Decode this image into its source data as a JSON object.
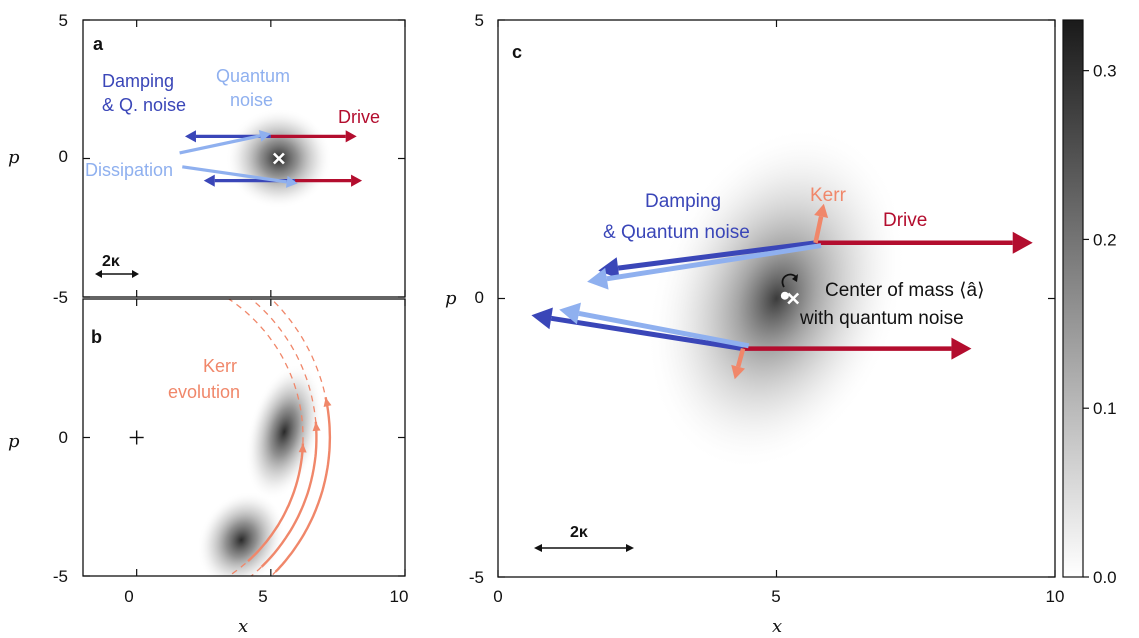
{
  "colors": {
    "blue": "#3a46b8",
    "light_blue": "#8fb0ef",
    "red": "#b30d2e",
    "orange": "#f0876a",
    "dark": "#111111"
  },
  "chart_data": [
    {
      "panel": "a",
      "type": "heatmap",
      "xlabel": "x",
      "ylabel": "p",
      "xlim": [
        -2,
        10
      ],
      "ylim": [
        -5,
        5
      ],
      "xticks": [
        "0",
        "5",
        "10"
      ],
      "yticks": [
        "-5",
        "0",
        "5"
      ],
      "blob": {
        "cx": 5.3,
        "cy": 0.0,
        "sx": 0.9,
        "sy": 0.7
      },
      "marker": {
        "x": 5.3,
        "y": 0.0
      },
      "arrows": [
        {
          "name": "damping-upper",
          "color": "blue",
          "from": [
            5.0,
            0.8
          ],
          "to": [
            1.8,
            0.8
          ]
        },
        {
          "name": "drive-upper",
          "color": "red",
          "from": [
            5.0,
            0.8
          ],
          "to": [
            8.2,
            0.8
          ]
        },
        {
          "name": "quantum-noise-upper",
          "color": "light_blue",
          "from": [
            1.6,
            0.2
          ],
          "to": [
            5.0,
            0.9
          ]
        },
        {
          "name": "damping-lower",
          "color": "blue",
          "from": [
            5.9,
            -0.8
          ],
          "to": [
            2.5,
            -0.8
          ]
        },
        {
          "name": "drive-lower",
          "color": "red",
          "from": [
            5.9,
            -0.8
          ],
          "to": [
            8.4,
            -0.8
          ]
        },
        {
          "name": "dissipation-lower",
          "color": "light_blue",
          "from": [
            1.7,
            -0.3
          ],
          "to": [
            6.0,
            -0.9
          ]
        }
      ],
      "labels": {
        "damping": [
          "Damping",
          "& Q. noise"
        ],
        "quantum": [
          "Quantum",
          "noise"
        ],
        "drive": "Drive",
        "dissipation": "Dissipation",
        "scale": "2κ"
      }
    },
    {
      "panel": "b",
      "type": "heatmap",
      "xlabel": "x",
      "ylabel": "p",
      "xlim": [
        -2,
        10
      ],
      "ylim": [
        -5,
        5
      ],
      "xticks": [
        "0",
        "5",
        "10"
      ],
      "yticks": [
        "-5",
        "0",
        "5"
      ],
      "blobs": [
        {
          "cx": 5.5,
          "cy": 0.2,
          "sx": 0.6,
          "sy": 1.1
        },
        {
          "cx": 3.9,
          "cy": -3.7,
          "sx": 0.7,
          "sy": 0.8
        }
      ],
      "origin_marker": {
        "x": 0,
        "y": 0
      },
      "arc_radii": [
        6.2,
        6.7,
        7.2
      ],
      "label": [
        "Kerr",
        "evolution"
      ]
    },
    {
      "panel": "c",
      "type": "heatmap",
      "xlabel": "x",
      "ylabel": "p",
      "xlim": [
        0,
        10
      ],
      "ylim": [
        -5,
        5
      ],
      "xticks": [
        "0",
        "5",
        "10"
      ],
      "yticks": [
        "-5",
        "0",
        "5"
      ],
      "colorbar": {
        "min": 0.0,
        "max": 0.33,
        "ticks": [
          "0.0",
          "0.1",
          "0.2",
          "0.3"
        ],
        "tick_values": [
          0.0,
          0.1,
          0.2,
          0.3
        ]
      },
      "marker_x": {
        "x": 5.3,
        "y": 0.0
      },
      "marker_dot": {
        "x": 5.15,
        "y": 0.05
      },
      "arrows": [
        {
          "name": "drive-upper",
          "color": "red",
          "from": [
            5.7,
            1.0
          ],
          "to": [
            9.6,
            1.0
          ]
        },
        {
          "name": "damping-upper",
          "color": "blue",
          "from": [
            5.7,
            1.0
          ],
          "to": [
            1.8,
            0.5
          ]
        },
        {
          "name": "qnoise-upper",
          "color": "light_blue",
          "from": [
            5.8,
            0.95
          ],
          "to": [
            1.6,
            0.3
          ]
        },
        {
          "name": "kerr-upper",
          "color": "orange",
          "from": [
            5.7,
            1.0
          ],
          "to": [
            5.85,
            1.7
          ]
        },
        {
          "name": "drive-lower",
          "color": "red",
          "from": [
            4.4,
            -0.9
          ],
          "to": [
            8.5,
            -0.9
          ]
        },
        {
          "name": "damping-lower",
          "color": "blue",
          "from": [
            4.4,
            -0.9
          ],
          "to": [
            0.6,
            -0.3
          ]
        },
        {
          "name": "qnoise-lower",
          "color": "light_blue",
          "from": [
            4.5,
            -0.85
          ],
          "to": [
            1.1,
            -0.2
          ]
        },
        {
          "name": "kerr-lower",
          "color": "orange",
          "from": [
            4.4,
            -0.9
          ],
          "to": [
            4.25,
            -1.45
          ]
        }
      ],
      "labels": {
        "damping": [
          "Damping",
          "& Quantum noise"
        ],
        "kerr": "Kerr",
        "drive": "Drive",
        "com": "Center of mass ⟨â⟩",
        "com2": "with quantum noise",
        "scale": "2κ"
      }
    }
  ],
  "panel_labels": {
    "a": "a",
    "b": "b",
    "c": "c"
  }
}
